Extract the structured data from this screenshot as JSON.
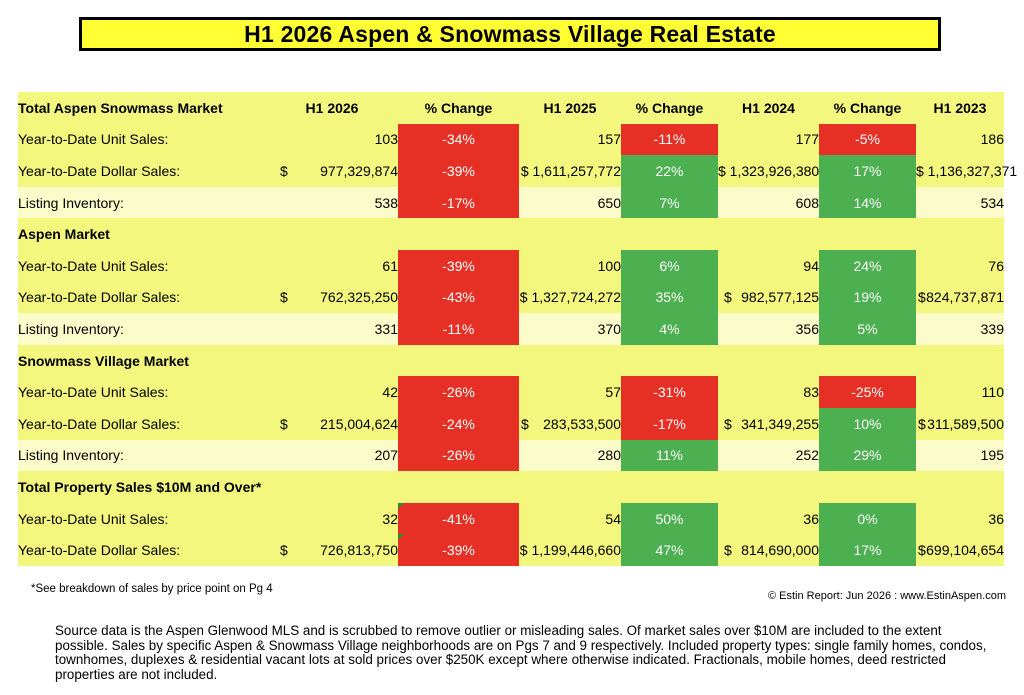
{
  "title": "H1 2026 Aspen & Snowmass Village Real Estate",
  "headers": {
    "col0": "Total Aspen Snowmass Market",
    "h1_2026": "H1 2026",
    "pct1": "% Change",
    "h1_2025": "H1 2025",
    "pct2": "% Change",
    "h1_2024": "H1 2024",
    "pct3": "% Change",
    "h1_2023": "H1 2023"
  },
  "sections": [
    {
      "title": "Total Aspen Snowmass Market",
      "rows": [
        {
          "label": "Year-to-Date Unit Sales:",
          "v2026": "103",
          "p1": "-34%",
          "v2025": "157",
          "p2": "-11%",
          "v2024": "177",
          "p3": "-5%",
          "v2023": "186"
        },
        {
          "label": "Year-to-Date Dollar Sales:",
          "v2026": "977,329,874",
          "p1": "-39%",
          "v2025": "$ 1,611,257,772",
          "p2": "22%",
          "v2024": "$ 1,323,926,380",
          "p3": "17%",
          "v2023": "$ 1,136,327,371"
        },
        {
          "label": "Listing Inventory:",
          "v2026": "538",
          "p1": "-17%",
          "v2025": "650",
          "p2": "7%",
          "v2024": "608",
          "p3": "14%",
          "v2023": "534"
        }
      ]
    },
    {
      "title": "Aspen Market",
      "rows": [
        {
          "label": "Year-to-Date Unit Sales:",
          "v2026": "61",
          "p1": "-39%",
          "v2025": "100",
          "p2": "6%",
          "v2024": "94",
          "p3": "24%",
          "v2023": "76"
        },
        {
          "label": "Year-to-Date Dollar Sales:",
          "v2026": "762,325,250",
          "p1": "-43%",
          "v2025": "$ 1,327,724,272",
          "p2": "35%",
          "v2024": "982,577,125",
          "p3": "19%",
          "v2023": "824,737,871"
        },
        {
          "label": "Listing Inventory:",
          "v2026": "331",
          "p1": "-11%",
          "v2025": "370",
          "p2": "4%",
          "v2024": "356",
          "p3": "5%",
          "v2023": "339"
        }
      ]
    },
    {
      "title": "Snowmass Village Market",
      "rows": [
        {
          "label": "Year-to-Date Unit Sales:",
          "v2026": "42",
          "p1": "-26%",
          "v2025": "57",
          "p2": "-31%",
          "v2024": "83",
          "p3": "-25%",
          "v2023": "110"
        },
        {
          "label": "Year-to-Date Dollar Sales:",
          "v2026": "215,004,624",
          "p1": "-24%",
          "v2025": "283,533,500",
          "p2": "-17%",
          "v2024": "341,349,255",
          "p3": "10%",
          "v2023": "311,589,500"
        },
        {
          "label": "Listing Inventory:",
          "v2026": "207",
          "p1": "-26%",
          "v2025": "280",
          "p2": "11%",
          "v2024": "252",
          "p3": "29%",
          "v2023": "195"
        }
      ]
    },
    {
      "title": "Total Property Sales $10M and Over*",
      "rows": [
        {
          "label": "Year-to-Date Unit Sales:",
          "v2026": "32",
          "p1": "-41%",
          "v2025": "54",
          "p2": "50%",
          "v2024": "36",
          "p3": "0%",
          "v2023": "36"
        },
        {
          "label": "Year-to-Date Dollar Sales:",
          "v2026": "726,813,750",
          "p1": "-39%",
          "v2025": "$ 1,199,446,660",
          "p2": "47%",
          "v2024": "814,690,000",
          "p3": "17%",
          "v2023": "699,104,654"
        }
      ]
    }
  ],
  "currency_symbol": "$",
  "colors": {
    "negative": "#e63025",
    "positive": "#4caf50",
    "band_yellow": "#f3f77e",
    "band_light": "#fbfcc9",
    "title_bg": "#ffff33"
  },
  "footnote": "*See breakdown of sales by price point on Pg 4",
  "credit": "© Estin Report: Jun 2026 : www.EstinAspen.com",
  "source": "Source data is the Aspen Glenwood MLS and is scrubbed to remove outlier or misleading sales. Of market sales over $10M are included to the extent possible. Sales by specific Aspen & Snowmass Village neighborhoods are on Pgs 7 and 9 respectively. Included property types: single family homes, condos, townhomes, duplexes & residential vacant lots at sold prices over $250K except where otherwise indicated. Fractionals, mobile homes, deed restricted properties are not included."
}
